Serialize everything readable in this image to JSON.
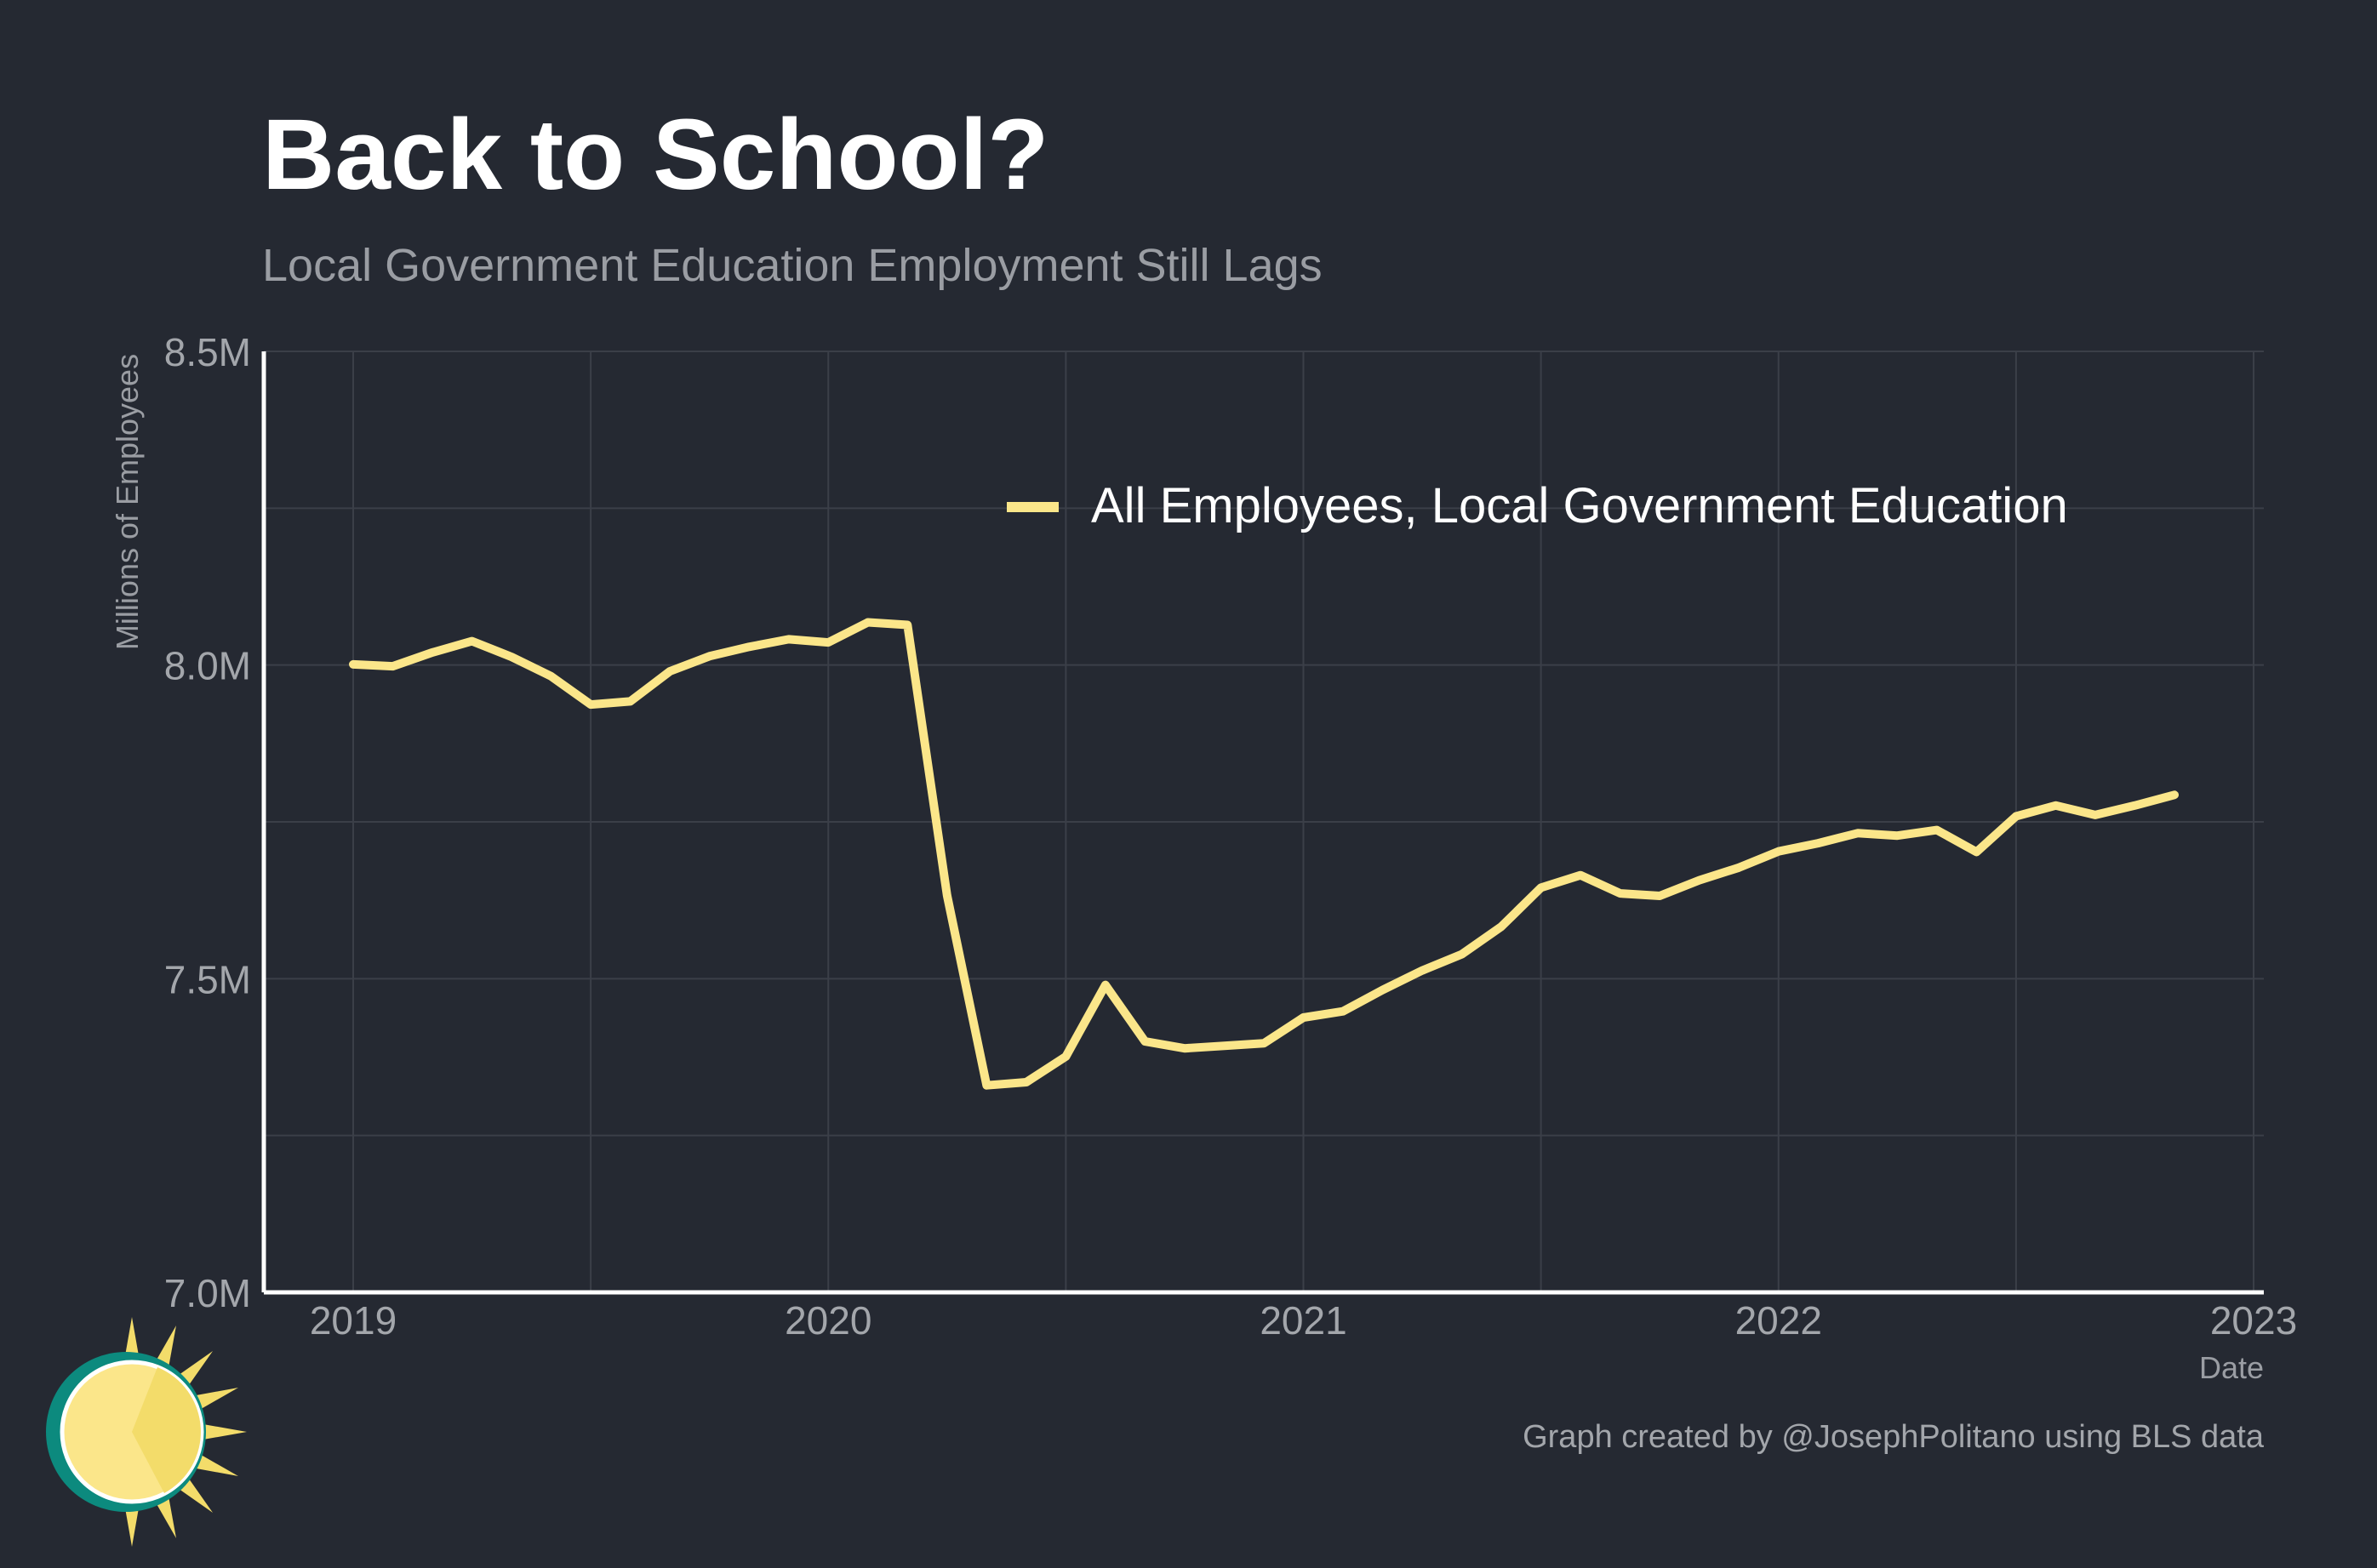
{
  "chart_data": {
    "type": "line",
    "title": "Back to School?",
    "subtitle": "Local Government Education Employment Still Lags",
    "xlabel": "Date",
    "ylabel": "Millions of Employees",
    "caption": "Graph created by @JosephPolitano using BLS data",
    "x_ticks": [
      "2019",
      "2020",
      "2021",
      "2022",
      "2023"
    ],
    "y_ticks": [
      "7.0M",
      "7.5M",
      "8.0M",
      "8.5M"
    ],
    "ylim": [
      7.0,
      8.5
    ],
    "xlim": [
      "2018-10",
      "2023-01"
    ],
    "grid": true,
    "legend_position": "top-right",
    "series": [
      {
        "name": "All Employees, Local Government Education",
        "color": "#fbe68a",
        "x": [
          "2019-01",
          "2019-02",
          "2019-03",
          "2019-04",
          "2019-05",
          "2019-06",
          "2019-07",
          "2019-08",
          "2019-09",
          "2019-10",
          "2019-11",
          "2019-12",
          "2020-01",
          "2020-02",
          "2020-03",
          "2020-04",
          "2020-05",
          "2020-06",
          "2020-07",
          "2020-08",
          "2020-09",
          "2020-10",
          "2020-11",
          "2020-12",
          "2021-01",
          "2021-02",
          "2021-03",
          "2021-04",
          "2021-05",
          "2021-06",
          "2021-07",
          "2021-08",
          "2021-09",
          "2021-10",
          "2021-11",
          "2021-12",
          "2022-01",
          "2022-02",
          "2022-03",
          "2022-04",
          "2022-05",
          "2022-06",
          "2022-07",
          "2022-08",
          "2022-09",
          "2022-10",
          "2022-11"
        ],
        "values": [
          8.001,
          7.998,
          8.02,
          8.038,
          8.013,
          7.982,
          7.937,
          7.942,
          7.99,
          8.014,
          8.029,
          8.041,
          8.036,
          8.068,
          8.064,
          7.633,
          7.33,
          7.335,
          7.376,
          7.49,
          7.4,
          7.389,
          7.393,
          7.397,
          7.438,
          7.448,
          7.482,
          7.513,
          7.539,
          7.583,
          7.645,
          7.665,
          7.636,
          7.632,
          7.657,
          7.677,
          7.703,
          7.716,
          7.732,
          7.728,
          7.737,
          7.702,
          7.759,
          7.776,
          7.761,
          7.776,
          7.793
        ]
      }
    ]
  },
  "logo": {
    "name": "sun-logo",
    "colors": [
      "#0c8a7e",
      "#fbe68a",
      "#f3dc6a"
    ]
  },
  "colors": {
    "background": "#252932",
    "grid": "#3b3f48",
    "axis": "#ffffff"
  }
}
